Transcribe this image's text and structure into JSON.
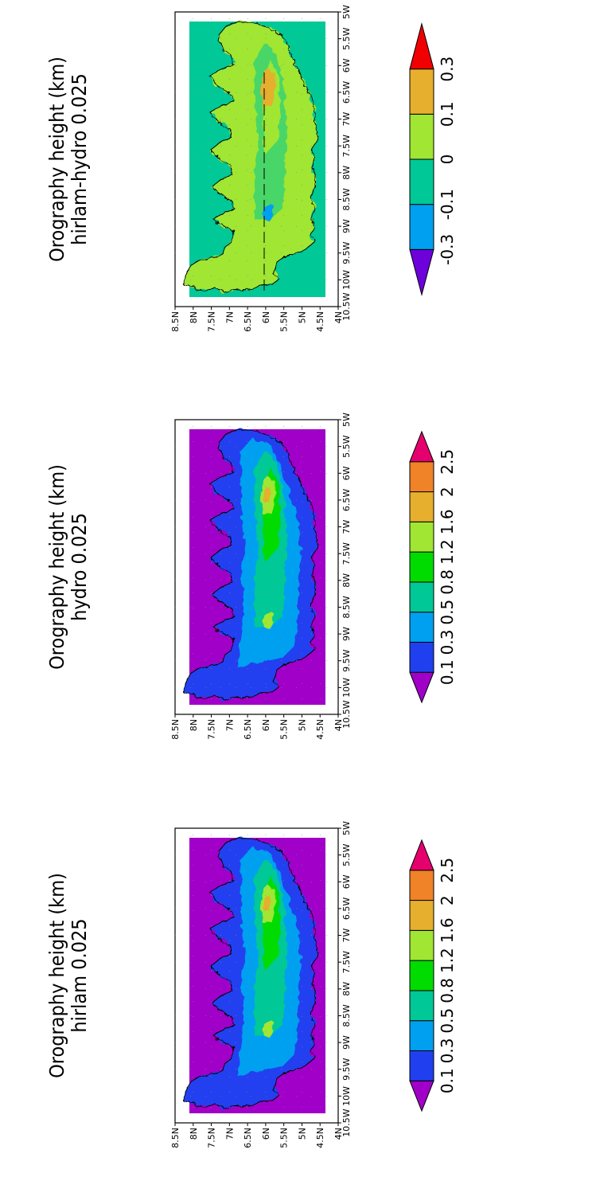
{
  "panels": [
    {
      "title_line1": "Orography height (km)",
      "title_line2": "hirlam 0.025",
      "variant": "hirlam",
      "colorbar": {
        "labels": [
          "0.1",
          "0.3",
          "0.5",
          "0.8",
          "1.2",
          "1.6",
          "2",
          "2.5"
        ],
        "colors": [
          "#a000c8",
          "#2040f0",
          "#00a0f0",
          "#00c896",
          "#00dc00",
          "#a0e632",
          "#e6af2d",
          "#f08228",
          "#e6006e"
        ]
      }
    },
    {
      "title_line1": "Orography height (km)",
      "title_line2": "hydro 0.025",
      "variant": "hydro",
      "colorbar": {
        "labels": [
          "0.1",
          "0.3",
          "0.5",
          "0.8",
          "1.2",
          "1.6",
          "2",
          "2.5"
        ],
        "colors": [
          "#a000c8",
          "#2040f0",
          "#00a0f0",
          "#00c896",
          "#00dc00",
          "#a0e632",
          "#e6af2d",
          "#f08228",
          "#e6006e"
        ]
      }
    },
    {
      "title_line1": "Orography height (km)",
      "title_line2": "hirlam-hydro 0.025",
      "variant": "diff",
      "colorbar": {
        "labels": [
          "-0.3",
          "-0.1",
          "0",
          "0.1",
          "0.3"
        ],
        "colors": [
          "#6e00dc",
          "#00a0f0",
          "#00c896",
          "#a0e632",
          "#e6af2d",
          "#f00000"
        ]
      }
    }
  ],
  "lon_ticks": [
    "10.5W",
    "10W",
    "9.5W",
    "9W",
    "8.5W",
    "8W",
    "7.5W",
    "7W",
    "6.5W",
    "6W",
    "5.5W",
    "5W"
  ],
  "lat_ticks": [
    "8.5N",
    "8N",
    "7.5N",
    "7N",
    "6.5N",
    "6N",
    "5.5N",
    "5N",
    "4.5N",
    "4N"
  ],
  "ocean_colors": {
    "height": "#a000c8",
    "diff": "#00c896"
  }
}
